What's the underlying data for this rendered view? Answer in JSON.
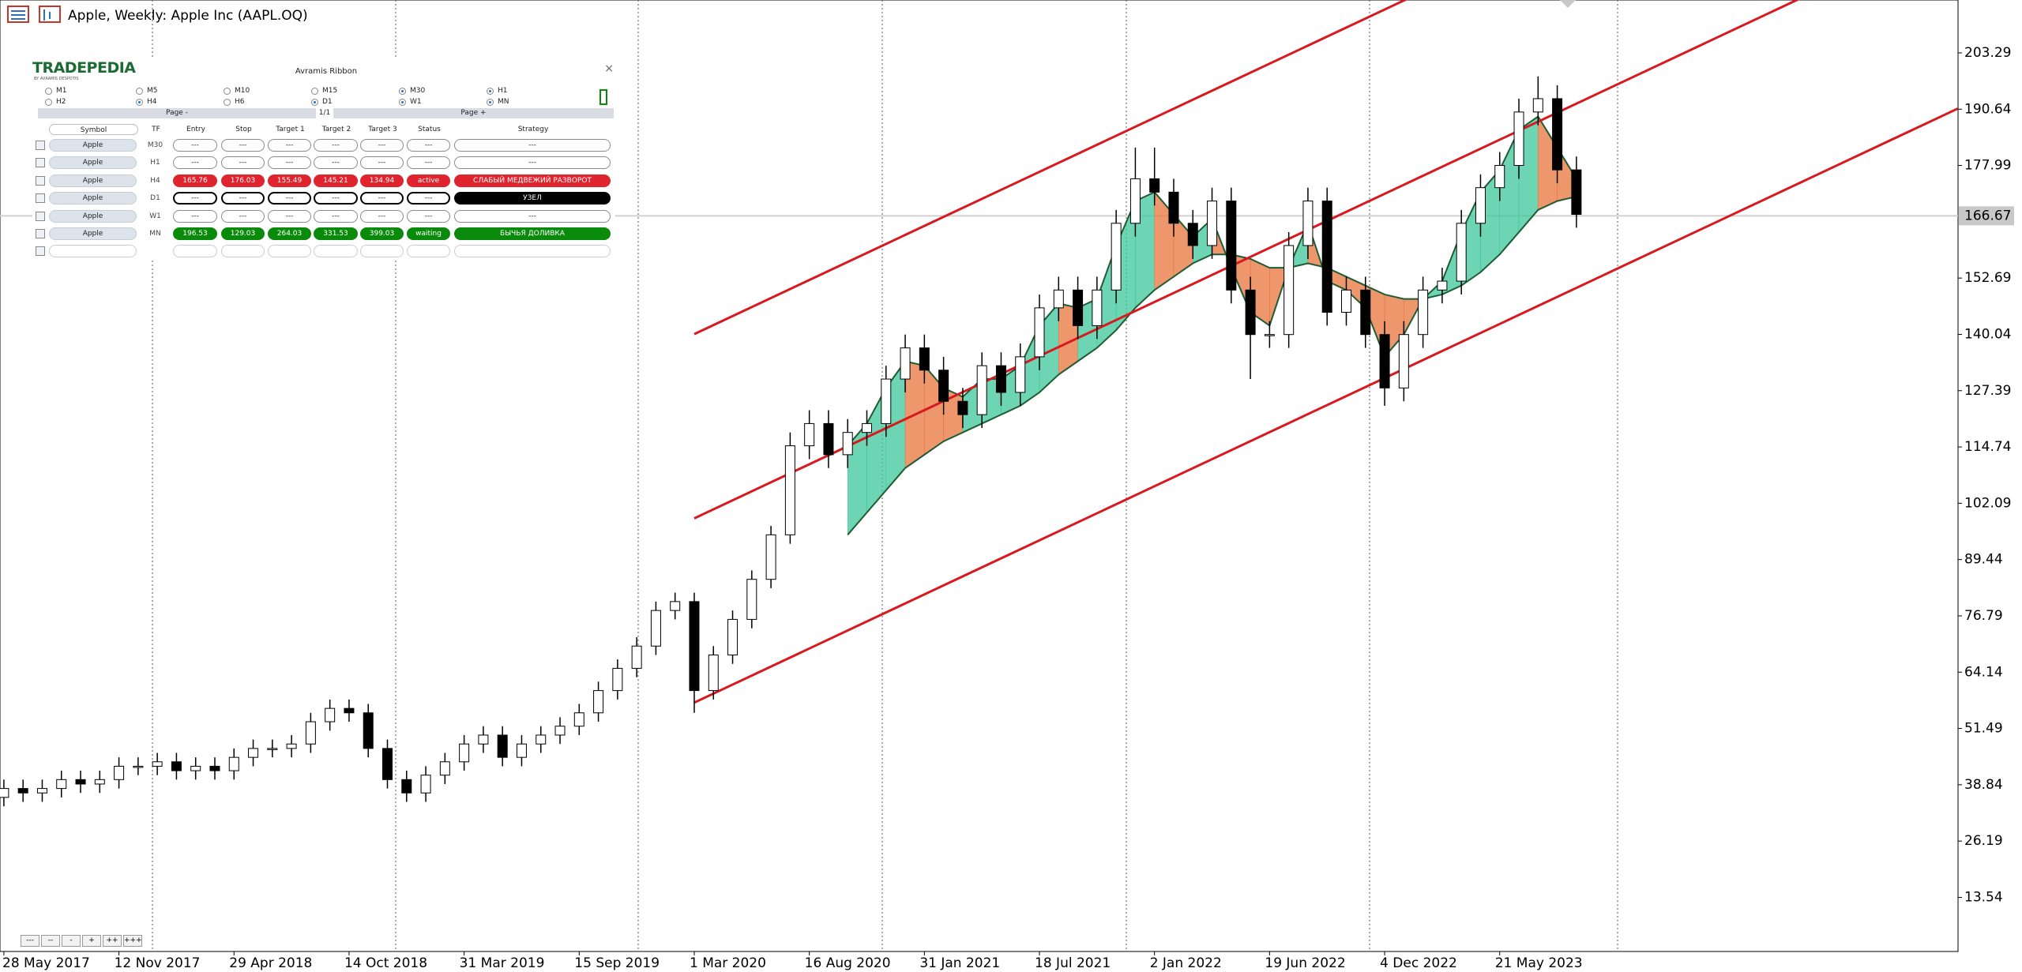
{
  "header": {
    "title": "Apple, Weekly:  Apple Inc (AAPL.OQ)"
  },
  "chart_data": {
    "type": "candlestick",
    "categories": [
      "28 May 2017",
      null,
      null,
      null,
      null,
      null,
      "12 Nov 2017",
      null,
      null,
      null,
      null,
      null,
      "29 Apr 2018",
      null,
      null,
      null,
      null,
      null,
      "14 Oct 2018",
      null,
      null,
      null,
      null,
      null,
      "31 Mar 2019",
      null,
      null,
      null,
      null,
      null,
      "15 Sep 2019",
      null,
      null,
      null,
      null,
      null,
      "1 Mar 2020",
      null,
      null,
      null,
      null,
      null,
      "16 Aug 2020",
      null,
      null,
      null,
      null,
      null,
      "31 Jan 2021",
      null,
      null,
      null,
      null,
      null,
      "18 Jul 2021",
      null,
      null,
      null,
      null,
      null,
      "2 Jan 2022",
      null,
      null,
      null,
      null,
      null,
      "19 Jun 2022",
      null,
      null,
      null,
      null,
      null,
      "4 Dec 2022",
      null,
      null,
      null,
      null,
      null,
      "21 May 2023",
      null,
      null,
      null,
      null
    ],
    "open": [
      36,
      38,
      37,
      38,
      40,
      39,
      40,
      43,
      43,
      44,
      42,
      43,
      42,
      45,
      47,
      47,
      48,
      53,
      56,
      55,
      47,
      40,
      37,
      41,
      44,
      48,
      50,
      45,
      48,
      50,
      52,
      55,
      60,
      65,
      70,
      78,
      80,
      60,
      68,
      76,
      85,
      95,
      115,
      120,
      113,
      118,
      120,
      130,
      137,
      132,
      125,
      122,
      133,
      127,
      135,
      146,
      150,
      142,
      150,
      165,
      175,
      172,
      165,
      160,
      170,
      150,
      140,
      140,
      160,
      170,
      145,
      150,
      140,
      128,
      140,
      150,
      152,
      165,
      173,
      178,
      190,
      193,
      177
    ],
    "high": [
      40,
      40,
      40,
      42,
      42,
      42,
      45,
      45,
      46,
      46,
      45,
      45,
      47,
      49,
      49,
      50,
      55,
      58,
      58,
      57,
      49,
      42,
      43,
      46,
      50,
      52,
      52,
      50,
      52,
      54,
      57,
      62,
      67,
      72,
      80,
      82,
      82,
      70,
      78,
      87,
      97,
      118,
      123,
      123,
      121,
      123,
      133,
      140,
      140,
      135,
      128,
      136,
      136,
      138,
      149,
      153,
      153,
      153,
      168,
      182,
      182,
      175,
      168,
      173,
      173,
      153,
      143,
      163,
      173,
      173,
      153,
      153,
      143,
      143,
      153,
      155,
      168,
      176,
      181,
      193,
      198,
      196,
      180
    ],
    "low": [
      34,
      35,
      35,
      36,
      37,
      37,
      38,
      41,
      41,
      40,
      40,
      40,
      40,
      43,
      45,
      45,
      46,
      51,
      53,
      45,
      38,
      35,
      35,
      39,
      42,
      46,
      43,
      43,
      46,
      48,
      50,
      53,
      58,
      63,
      68,
      76,
      55,
      58,
      66,
      74,
      83,
      93,
      112,
      110,
      110,
      115,
      117,
      127,
      129,
      122,
      119,
      119,
      124,
      124,
      132,
      143,
      139,
      139,
      147,
      162,
      169,
      162,
      157,
      157,
      147,
      130,
      137,
      137,
      157,
      142,
      142,
      137,
      124,
      125,
      137,
      147,
      149,
      162,
      170,
      175,
      187,
      174,
      164
    ],
    "close": [
      38,
      37,
      38,
      40,
      39,
      40,
      43,
      43,
      44,
      42,
      43,
      42,
      45,
      47,
      47,
      48,
      53,
      56,
      55,
      47,
      40,
      37,
      41,
      44,
      48,
      50,
      45,
      48,
      50,
      52,
      55,
      60,
      65,
      70,
      78,
      80,
      60,
      68,
      76,
      85,
      95,
      115,
      120,
      113,
      118,
      120,
      130,
      137,
      132,
      125,
      122,
      133,
      127,
      135,
      146,
      150,
      142,
      150,
      165,
      175,
      172,
      165,
      160,
      170,
      150,
      140,
      140,
      160,
      170,
      145,
      150,
      140,
      128,
      140,
      150,
      152,
      165,
      173,
      178,
      190,
      193,
      177,
      167
    ],
    "up_color": "#ffffff",
    "down_color": "#000000",
    "ylim": [
      1.38,
      215.17
    ],
    "yticks": [
      13.54,
      26.19,
      38.84,
      51.49,
      64.14,
      76.79,
      89.44,
      102.09,
      114.74,
      127.39,
      140.04,
      152.69,
      177.99,
      190.64,
      203.29
    ],
    "last_price": 166.67,
    "trendlines": [
      {
        "color": "#d71920",
        "x": [
          36,
          102
        ],
        "values": [
          57.3,
          191.0
        ]
      },
      {
        "color": "#d71920",
        "x": [
          36,
          102
        ],
        "values": [
          98.7,
          232.4
        ]
      },
      {
        "color": "#d71920",
        "x": [
          36,
          102
        ],
        "values": [
          140.1,
          273.8
        ]
      }
    ],
    "ribbon": {
      "up_color": "#3cc79a",
      "down_color": "#e8743c",
      "line_color": "#1f5b33",
      "fast": [
        null,
        null,
        null,
        null,
        null,
        null,
        null,
        null,
        null,
        null,
        null,
        null,
        null,
        null,
        null,
        null,
        null,
        null,
        null,
        null,
        null,
        null,
        null,
        null,
        null,
        null,
        null,
        null,
        null,
        null,
        null,
        null,
        null,
        null,
        null,
        null,
        null,
        null,
        null,
        null,
        null,
        null,
        null,
        null,
        115,
        120,
        128,
        134,
        133,
        128,
        126,
        130,
        130,
        133,
        142,
        147,
        146,
        148,
        160,
        170,
        172,
        167,
        162,
        166,
        155,
        145,
        142,
        155,
        165,
        152,
        150,
        146,
        135,
        140,
        148,
        152,
        163,
        172,
        177,
        186,
        189,
        182,
        175
      ],
      "slow": [
        null,
        null,
        null,
        null,
        null,
        null,
        null,
        null,
        null,
        null,
        null,
        null,
        null,
        null,
        null,
        null,
        null,
        null,
        null,
        null,
        null,
        null,
        null,
        null,
        null,
        null,
        null,
        null,
        null,
        null,
        null,
        null,
        null,
        null,
        null,
        null,
        null,
        null,
        null,
        null,
        null,
        null,
        null,
        null,
        95,
        100,
        105,
        110,
        113,
        116,
        118,
        120,
        122,
        124,
        127,
        131,
        134,
        137,
        141,
        146,
        150,
        153,
        156,
        158,
        158,
        157,
        155,
        155,
        156,
        155,
        153,
        151,
        149,
        148,
        148,
        149,
        151,
        154,
        158,
        163,
        168,
        170,
        171
      ]
    }
  },
  "panel": {
    "brand": "TRADEPEDIA",
    "brand_sub": "BY AVRAMIS DESPOTIS",
    "title": "Avramis Ribbon",
    "close": "×",
    "timeframes": [
      {
        "label": "M1",
        "checked": false
      },
      {
        "label": "M5",
        "checked": false
      },
      {
        "label": "M10",
        "checked": false
      },
      {
        "label": "M15",
        "checked": false
      },
      {
        "label": "M30",
        "checked": true
      },
      {
        "label": "H1",
        "checked": true
      },
      {
        "label": "H2",
        "checked": false
      },
      {
        "label": "H4",
        "checked": true
      },
      {
        "label": "H6",
        "checked": false
      },
      {
        "label": "D1",
        "checked": true
      },
      {
        "label": "W1",
        "checked": true
      },
      {
        "label": "MN",
        "checked": true
      }
    ],
    "page_prev": "Page -",
    "page_num": "1/1",
    "page_next": "Page +",
    "headers": [
      "Symbol",
      "TF",
      "Entry",
      "Stop",
      "Target 1",
      "Target 2",
      "Target 3",
      "Status",
      "Strategy"
    ],
    "rows": [
      {
        "cells": [
          "Apple",
          "M30",
          "---",
          "---",
          "---",
          "---",
          "---",
          "---",
          "---"
        ]
      },
      {
        "cells": [
          "Apple",
          "H1",
          "---",
          "---",
          "---",
          "---",
          "---",
          "---",
          "---"
        ]
      },
      {
        "cells": [
          "Apple",
          "H4",
          "165.76",
          "176.03",
          "155.49",
          "145.21",
          "134.94",
          "active",
          "СЛАБЫЙ МЕДВЕЖИЙ РАЗВОРОТ"
        ],
        "color": "#e0242e"
      },
      {
        "cells": [
          "Apple",
          "D1",
          "---",
          "---",
          "---",
          "---",
          "---",
          "---",
          "УЗЕЛ"
        ],
        "color": "#000000"
      },
      {
        "cells": [
          "Apple",
          "W1",
          "---",
          "---",
          "---",
          "---",
          "---",
          "---",
          "---"
        ]
      },
      {
        "cells": [
          "Apple",
          "MN",
          "196.53",
          "129.03",
          "264.03",
          "331.53",
          "399.03",
          "waiting",
          "БЫЧЬЯ ДОЛИВКА"
        ],
        "color": "#0a8a0a"
      }
    ]
  },
  "nav_buttons": [
    "---",
    "--",
    "-",
    "+",
    "++",
    "+++"
  ]
}
